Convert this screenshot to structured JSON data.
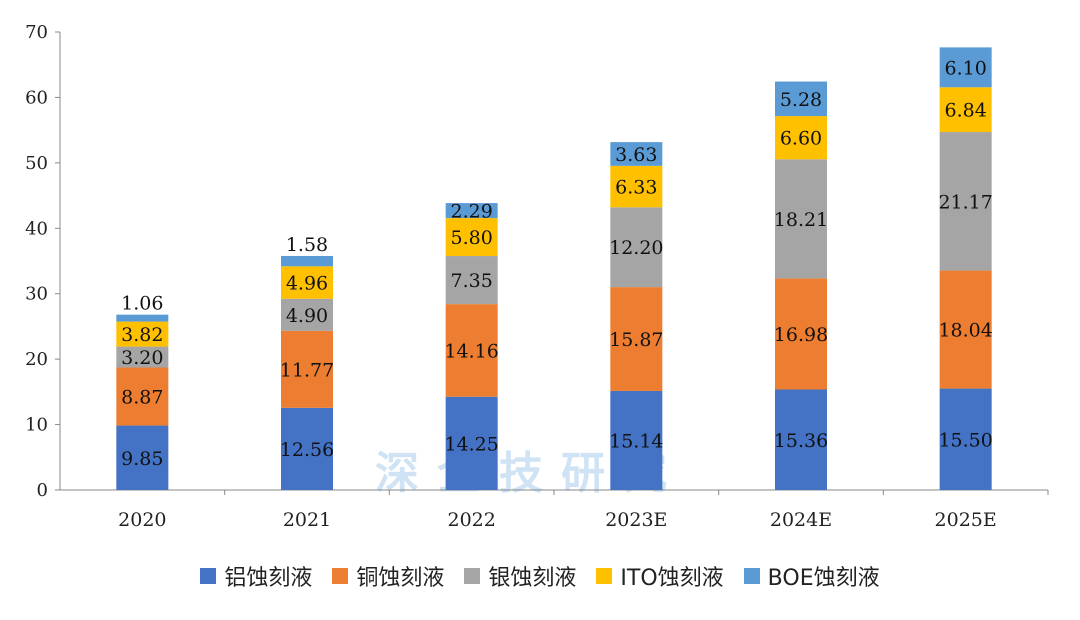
{
  "chart_data": {
    "type": "bar",
    "stacked": true,
    "categories": [
      "2020",
      "2021",
      "2022",
      "2023E",
      "2024E",
      "2025E"
    ],
    "ylim": [
      0,
      70
    ],
    "yticks": [
      0,
      10,
      20,
      30,
      40,
      50,
      60,
      70
    ],
    "series": [
      {
        "name": "铝蚀刻液",
        "color": "#4472C4",
        "values": [
          9.85,
          12.56,
          14.25,
          15.14,
          15.36,
          15.5
        ],
        "labels": [
          "9.85",
          "12.56",
          "14.25",
          "15.14",
          "15.36",
          "15.50"
        ]
      },
      {
        "name": "铜蚀刻液",
        "color": "#ED7D31",
        "values": [
          8.87,
          11.77,
          14.16,
          15.87,
          16.98,
          18.04
        ],
        "labels": [
          "8.87",
          "11.77",
          "14.16",
          "15.87",
          "16.98",
          "18.04"
        ]
      },
      {
        "name": "银蚀刻液",
        "color": "#A5A5A5",
        "values": [
          3.2,
          4.9,
          7.35,
          12.2,
          18.21,
          21.17
        ],
        "labels": [
          "3.20",
          "4.90",
          "7.35",
          "12.20",
          "18.21",
          "21.17"
        ]
      },
      {
        "name": "ITO蚀刻液",
        "color": "#FFC000",
        "values": [
          3.82,
          4.96,
          5.8,
          6.33,
          6.6,
          6.84
        ],
        "labels": [
          "3.82",
          "4.96",
          "5.80",
          "6.33",
          "6.60",
          "6.84"
        ]
      },
      {
        "name": "BOE蚀刻液",
        "color": "#5B9BD5",
        "values": [
          1.06,
          1.58,
          2.29,
          3.63,
          5.28,
          6.1
        ],
        "labels": [
          "1.06",
          "1.58",
          "2.29",
          "3.63",
          "5.28",
          "6.10"
        ]
      }
    ],
    "legend_position": "bottom"
  },
  "watermark": {
    "text": "深企技研究"
  }
}
